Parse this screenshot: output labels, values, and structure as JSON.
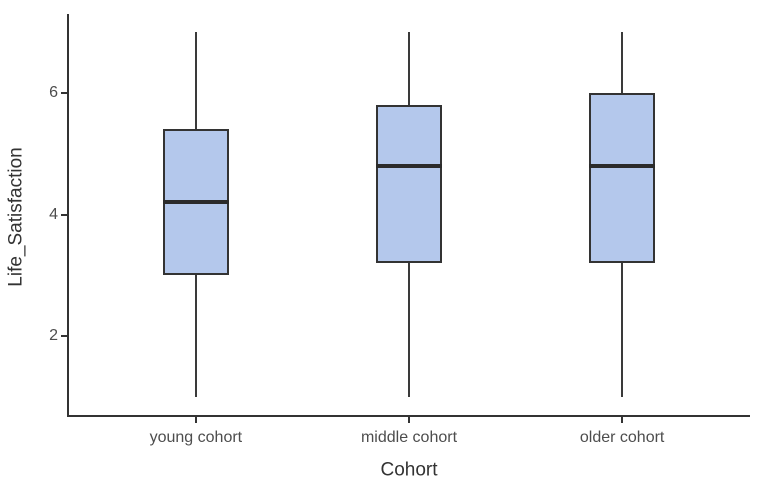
{
  "chart_data": {
    "type": "boxplot",
    "title": "",
    "xlabel": "Cohort",
    "ylabel": "Life_Satisfaction",
    "categories": [
      "young cohort",
      "middle cohort",
      "older cohort"
    ],
    "series": [
      {
        "name": "young cohort",
        "min": 1.0,
        "q1": 3.0,
        "median": 4.2,
        "q3": 5.4,
        "max": 7.0
      },
      {
        "name": "middle cohort",
        "min": 1.0,
        "q1": 3.2,
        "median": 4.8,
        "q3": 5.8,
        "max": 7.0
      },
      {
        "name": "older cohort",
        "min": 1.0,
        "q1": 3.2,
        "median": 4.8,
        "q3": 6.0,
        "max": 7.0
      }
    ],
    "y_axis": {
      "ticks": [
        "2",
        "4",
        "6"
      ],
      "tick_values": [
        2,
        4,
        6
      ],
      "range": [
        0.7,
        7.3
      ]
    },
    "x_axis": {
      "range": [
        0.4,
        3.6
      ],
      "positions": [
        1,
        2,
        3
      ]
    },
    "grid": false,
    "legend": false,
    "colors": {
      "box_fill": "#b4c8ec",
      "box_border": "#333333",
      "median_line": "#2b2b2b",
      "whisker": "#3a3a3a",
      "axis_line": "#333333",
      "tick_label": "#4d4d4d",
      "axis_title": "#333333",
      "background": "#ffffff"
    }
  }
}
